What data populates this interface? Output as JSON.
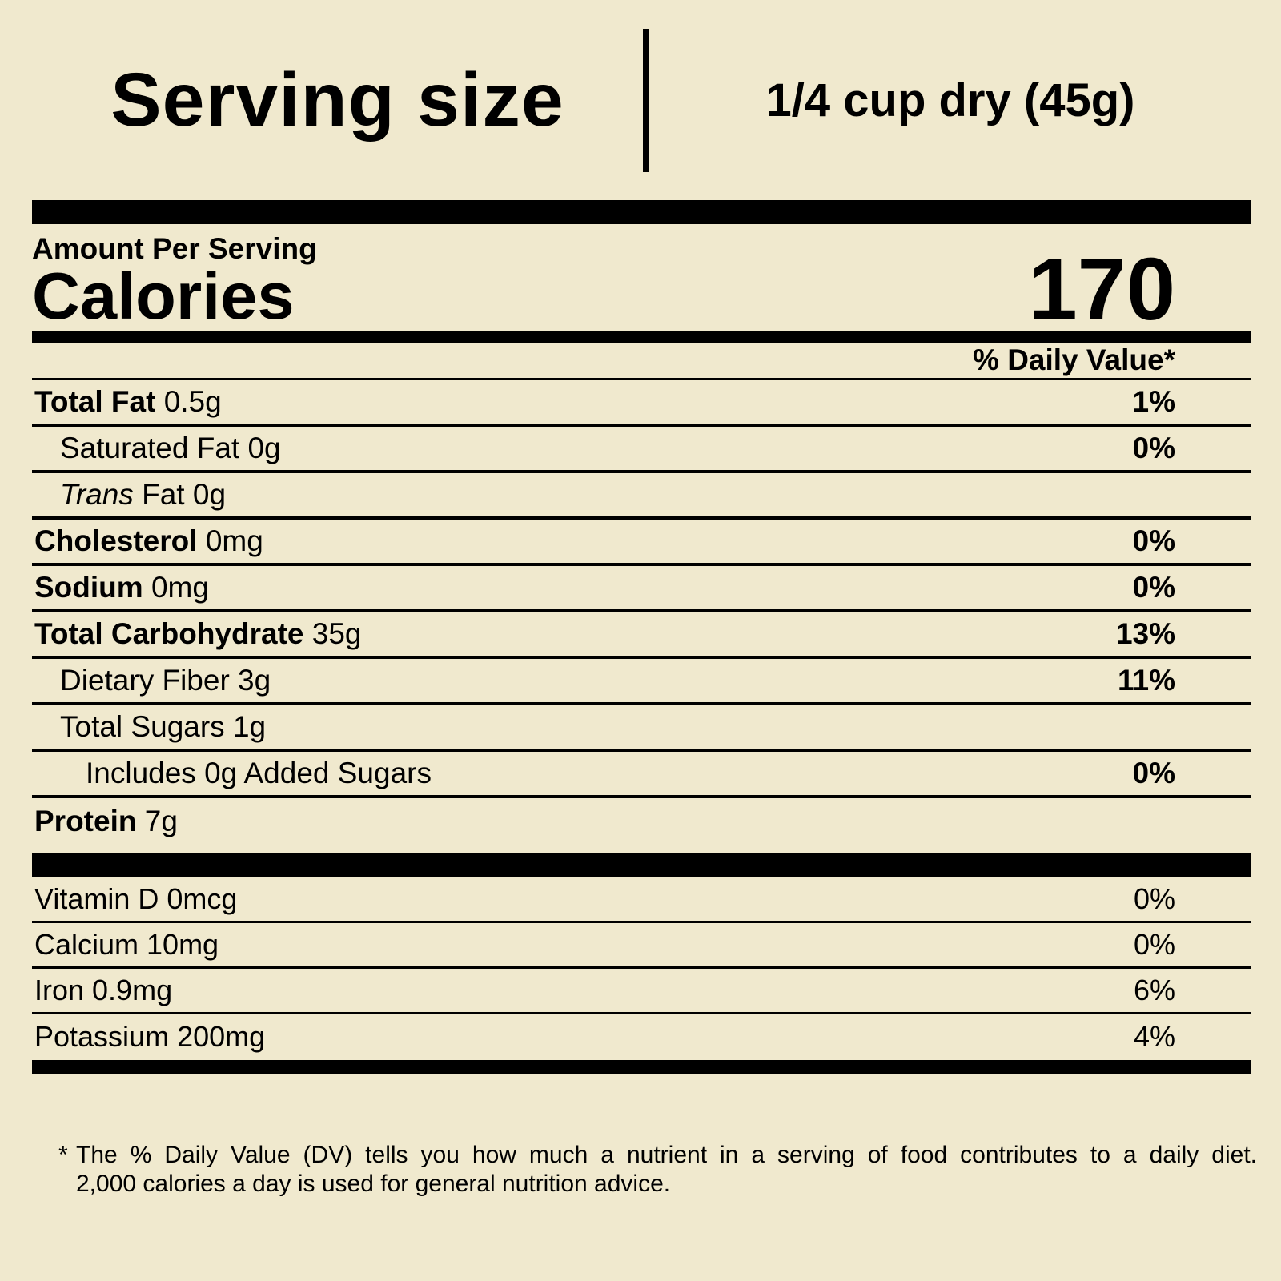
{
  "serving": {
    "label": "Serving size",
    "value": "1/4 cup dry (45g)"
  },
  "calories": {
    "heading": "Amount Per Serving",
    "label": "Calories",
    "value": "170"
  },
  "daily_value_header": "% Daily Value*",
  "nutrients": [
    {
      "bold": "Total Fat",
      "rest": "0.5g",
      "dv": "1%",
      "dv_bold": true,
      "indent": 0
    },
    {
      "rest": "Saturated Fat 0g",
      "dv": "0%",
      "dv_bold": true,
      "indent": 1
    },
    {
      "italic": "Trans",
      "rest": "Fat 0g",
      "dv": "",
      "indent": 1
    },
    {
      "bold": "Cholesterol",
      "rest": "0mg",
      "dv": "0%",
      "dv_bold": true,
      "indent": 0
    },
    {
      "bold": "Sodium",
      "rest": "0mg",
      "dv": "0%",
      "dv_bold": true,
      "indent": 0
    },
    {
      "bold": "Total Carbohydrate",
      "rest": "35g",
      "dv": "13%",
      "dv_bold": true,
      "indent": 0
    },
    {
      "rest": "Dietary Fiber 3g",
      "dv": "11%",
      "dv_bold": true,
      "indent": 1
    },
    {
      "rest": "Total Sugars 1g",
      "dv": "",
      "indent": 1
    },
    {
      "rest": "Includes 0g Added Sugars",
      "dv": "0%",
      "dv_bold": true,
      "indent": 2
    },
    {
      "bold": "Protein",
      "rest": "7g",
      "dv": "",
      "indent": 0,
      "last": true
    }
  ],
  "micronutrients": [
    {
      "rest": "Vitamin D 0mcg",
      "dv": "0%"
    },
    {
      "rest": "Calcium 10mg",
      "dv": "0%"
    },
    {
      "rest": "Iron 0.9mg",
      "dv": "6%"
    },
    {
      "rest": "Potassium 200mg",
      "dv": "4%",
      "last": true
    }
  ],
  "footnote": {
    "asterisk": "*",
    "line1": "The % Daily Value (DV) tells you how much a nutrient in a serving of food contributes to a daily diet.",
    "line2": "2,000 calories a day is used for general nutrition advice."
  },
  "colors": {
    "background": "#F0E9CE",
    "text": "#000000"
  }
}
